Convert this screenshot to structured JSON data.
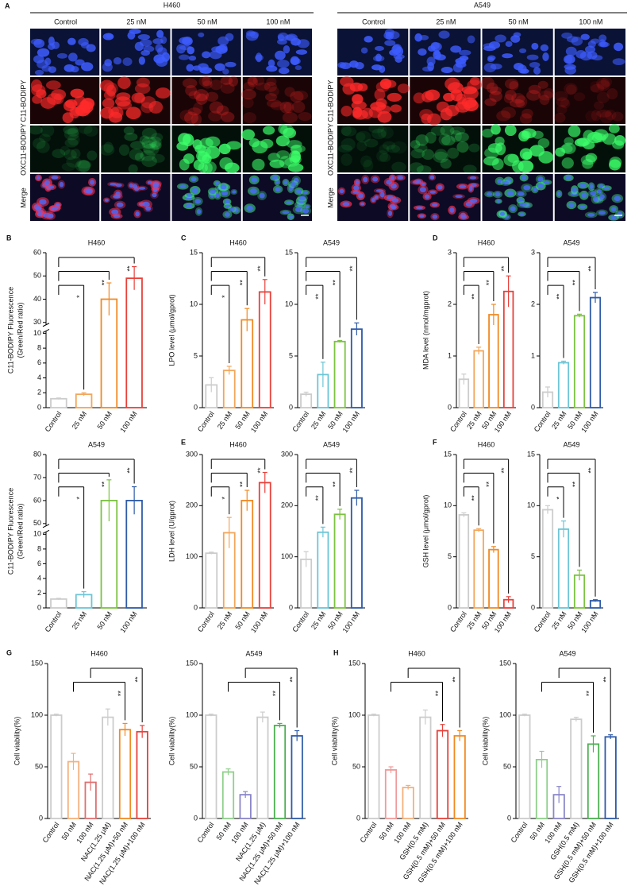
{
  "panel_a": {
    "label": "A",
    "row_label_colors": [
      "#e02020",
      "#1f9a3c",
      "#000000"
    ],
    "groups": [
      {
        "title": "H460",
        "columns": [
          "Control",
          "25 nM",
          "50 nM",
          "100 nM"
        ],
        "row_labels": [
          "C11-BODIPY",
          "OXC11-BODIPY",
          "Merge"
        ]
      },
      {
        "title": "A549",
        "columns": [
          "Control",
          "25 nM",
          "50 nM",
          "100 nM"
        ],
        "row_labels": [
          "C11-BODIPY",
          "OXC11-BODIPY",
          "Merge"
        ]
      }
    ]
  },
  "chart_data": [
    {
      "type": "bar",
      "panel": "B",
      "title": "H460",
      "ylabel": [
        "C11-BODIPY Fluorescence",
        "(Green/Red ratio)"
      ],
      "categories": [
        "Control",
        "25 nM",
        "50 nM",
        "100 nM"
      ],
      "values": [
        1.2,
        1.8,
        40,
        49
      ],
      "errors": [
        0.1,
        0.2,
        7,
        5
      ],
      "significance": [
        null,
        "*",
        "**",
        "**"
      ],
      "colors": [
        "#cccccc",
        "#f2a65a",
        "#f08a24",
        "#e8403a"
      ],
      "ylim": [
        0,
        60
      ],
      "axis_break": [
        10,
        30
      ],
      "yticks": [
        0,
        2,
        4,
        6,
        8,
        10,
        30,
        40,
        50,
        60
      ]
    },
    {
      "type": "bar",
      "title": "A549",
      "ylabel": [
        "C11-BODIPY Fluorescence",
        "(Green/Red ratio)"
      ],
      "categories": [
        "Control",
        "25 nM",
        "50 nM",
        "100 nM"
      ],
      "values": [
        1.2,
        1.8,
        60,
        60
      ],
      "errors": [
        0.1,
        0.4,
        9,
        6
      ],
      "significance": [
        null,
        "*",
        "**",
        "**"
      ],
      "colors": [
        "#cccccc",
        "#6cc5d6",
        "#7cc242",
        "#2e5aa8"
      ],
      "ylim": [
        0,
        80
      ],
      "axis_break": [
        10,
        50
      ],
      "yticks": [
        0,
        2,
        4,
        6,
        8,
        10,
        50,
        60,
        70,
        80
      ]
    },
    {
      "type": "bar",
      "panel": "C",
      "title": "H460",
      "ylabel": [
        "LPO level (μmol/gprot)"
      ],
      "categories": [
        "Control",
        "25 nM",
        "50 nM",
        "100 nM"
      ],
      "values": [
        2.2,
        3.6,
        8.5,
        11.2
      ],
      "errors": [
        0.7,
        0.4,
        1.1,
        1.2
      ],
      "significance": [
        null,
        "*",
        "**",
        "**"
      ],
      "colors": [
        "#cccccc",
        "#f2a65a",
        "#f08a24",
        "#e8403a"
      ],
      "ylim": [
        0,
        15
      ],
      "yticks": [
        0,
        5,
        10,
        15
      ]
    },
    {
      "type": "bar",
      "title": "A549",
      "categories": [
        "Control",
        "25 nM",
        "50 nM",
        "100 nM"
      ],
      "values": [
        1.3,
        3.2,
        6.4,
        7.6
      ],
      "errors": [
        0.2,
        1.2,
        0.1,
        0.6
      ],
      "significance": [
        null,
        "**",
        "**",
        "**"
      ],
      "colors": [
        "#cccccc",
        "#6cc5d6",
        "#7cc242",
        "#2e5aa8"
      ],
      "ylim": [
        0,
        15
      ],
      "yticks": [
        0,
        5,
        10,
        15
      ]
    },
    {
      "type": "bar",
      "panel": "D",
      "title": "H460",
      "ylabel": [
        "MDA level (nmol/mgprot)"
      ],
      "categories": [
        "Control",
        "25 nM",
        "50 nM",
        "100 nM"
      ],
      "values": [
        0.55,
        1.1,
        1.8,
        2.25
      ],
      "errors": [
        0.1,
        0.07,
        0.2,
        0.3
      ],
      "significance": [
        null,
        "**",
        "**",
        "**"
      ],
      "colors": [
        "#cccccc",
        "#f2a65a",
        "#f08a24",
        "#e8403a"
      ],
      "ylim": [
        0,
        3
      ],
      "yticks": [
        0,
        1,
        2,
        3
      ]
    },
    {
      "type": "bar",
      "title": "A549",
      "categories": [
        "Control",
        "25 nM",
        "50 nM",
        "100 nM"
      ],
      "values": [
        0.3,
        0.87,
        1.78,
        2.13
      ],
      "errors": [
        0.1,
        0.03,
        0.03,
        0.1
      ],
      "significance": [
        null,
        "**",
        "**",
        "**"
      ],
      "colors": [
        "#cccccc",
        "#6cc5d6",
        "#7cc242",
        "#2e5aa8"
      ],
      "ylim": [
        0,
        3
      ],
      "yticks": [
        0,
        1,
        2,
        3
      ]
    },
    {
      "type": "bar",
      "panel": "E",
      "title": "H460",
      "ylabel": [
        "LDH level (U/gprot)"
      ],
      "categories": [
        "Control",
        "25 nM",
        "50 nM",
        "100 nM"
      ],
      "values": [
        107,
        147,
        210,
        245
      ],
      "errors": [
        2,
        30,
        20,
        20
      ],
      "significance": [
        null,
        "*",
        "**",
        "**"
      ],
      "colors": [
        "#cccccc",
        "#f2a65a",
        "#f08a24",
        "#e8403a"
      ],
      "ylim": [
        0,
        300
      ],
      "yticks": [
        0,
        100,
        200,
        300
      ]
    },
    {
      "type": "bar",
      "title": "A549",
      "categories": [
        "Control",
        "25 nM",
        "50 nM",
        "100 nM"
      ],
      "values": [
        95,
        148,
        183,
        215
      ],
      "errors": [
        15,
        10,
        10,
        15
      ],
      "significance": [
        null,
        "**",
        "**",
        "**"
      ],
      "colors": [
        "#cccccc",
        "#6cc5d6",
        "#7cc242",
        "#2e5aa8"
      ],
      "ylim": [
        0,
        300
      ],
      "yticks": [
        0,
        100,
        200,
        300
      ]
    },
    {
      "type": "bar",
      "panel": "F",
      "title": "H460",
      "ylabel": [
        "GSH level (μmol/gprot)"
      ],
      "categories": [
        "Control",
        "25 nM",
        "50 nM",
        "100 nM"
      ],
      "values": [
        9.1,
        7.6,
        5.7,
        0.8
      ],
      "errors": [
        0.2,
        0.15,
        0.3,
        0.3
      ],
      "significance": [
        null,
        "**",
        "**",
        "**"
      ],
      "colors": [
        "#cccccc",
        "#f2a65a",
        "#f08a24",
        "#e8403a"
      ],
      "ylim": [
        0,
        15
      ],
      "yticks": [
        0,
        5,
        10,
        15
      ]
    },
    {
      "type": "bar",
      "title": "A549",
      "categories": [
        "Control",
        "25 nM",
        "50 nM",
        "100 nM"
      ],
      "values": [
        9.6,
        7.7,
        3.2,
        0.7
      ],
      "errors": [
        0.4,
        0.8,
        0.5,
        0.1
      ],
      "significance": [
        null,
        "*",
        "**",
        "**"
      ],
      "colors": [
        "#cccccc",
        "#6cc5d6",
        "#7cc242",
        "#2e5aa8"
      ],
      "ylim": [
        0,
        15
      ],
      "yticks": [
        0,
        5,
        10,
        15
      ]
    },
    {
      "type": "bar",
      "panel": "G",
      "title": "H460",
      "ylabel": [
        "Cell viability(%)"
      ],
      "categories": [
        "Control",
        "50 nM",
        "100 nM",
        "NAC(1.25 μM)",
        "NAC(1.25 μM)+50 nM",
        "NAC(1.25 μM)+100 nM"
      ],
      "values": [
        100,
        55,
        35,
        98,
        86,
        84
      ],
      "errors": [
        1,
        8,
        8,
        8,
        6,
        6
      ],
      "significance": [
        null,
        null,
        null,
        null,
        "**",
        "**"
      ],
      "colors": [
        "#cccccc",
        "#f5b07a",
        "#e07070",
        "#cccccc",
        "#f08a24",
        "#e8403a"
      ],
      "ylim": [
        0,
        150
      ],
      "yticks": [
        0,
        50,
        100,
        150
      ]
    },
    {
      "type": "bar",
      "title": "A549",
      "ylabel": [
        "Cell viability(%)"
      ],
      "categories": [
        "Control",
        "50 nM",
        "100 nM",
        "NAC(1.25 μM)",
        "NAC(1.25 μM)+50 nM",
        "NAC(1.25 μM)+100 nM"
      ],
      "values": [
        100,
        45,
        23,
        98,
        90,
        80
      ],
      "errors": [
        1,
        3,
        3,
        5,
        2,
        5
      ],
      "significance": [
        null,
        null,
        null,
        null,
        "**",
        "**"
      ],
      "colors": [
        "#cccccc",
        "#8fd08a",
        "#8a86c8",
        "#cccccc",
        "#4caf50",
        "#2e5aa8"
      ],
      "ylim": [
        0,
        150
      ],
      "yticks": [
        0,
        50,
        100,
        150
      ]
    },
    {
      "type": "bar",
      "panel": "H",
      "title": "H460",
      "ylabel": [
        "Cell viability(%)"
      ],
      "categories": [
        "Control",
        "50 nM",
        "100 nM",
        "GSH(0.5 mM)",
        "GSH(0.5 mM)+50 nM",
        "GSH(0.5 mM)+100 nM"
      ],
      "values": [
        100,
        47,
        30,
        98,
        85,
        80
      ],
      "errors": [
        1,
        3,
        2,
        7,
        6,
        5
      ],
      "significance": [
        null,
        null,
        null,
        null,
        "**",
        "**"
      ],
      "colors": [
        "#cccccc",
        "#f09a9a",
        "#f5b07a",
        "#cccccc",
        "#e8403a",
        "#f08a24"
      ],
      "ylim": [
        0,
        150
      ],
      "yticks": [
        0,
        50,
        100,
        150
      ]
    },
    {
      "type": "bar",
      "title": "A549",
      "ylabel": [
        "Cell viability(%)"
      ],
      "categories": [
        "Control",
        "50 nM",
        "100 nM",
        "GSH(0.5 mM)",
        "GSH(0.5 mM)+50 nM",
        "GSH(0.5 mM)+100 nM"
      ],
      "values": [
        100,
        57,
        23,
        96,
        72,
        79
      ],
      "errors": [
        1,
        8,
        8,
        2,
        8,
        2
      ],
      "significance": [
        null,
        null,
        null,
        null,
        "**",
        "**"
      ],
      "colors": [
        "#cccccc",
        "#8fd08a",
        "#8a86c8",
        "#cccccc",
        "#4caf50",
        "#2e5aa8"
      ],
      "ylim": [
        0,
        150
      ],
      "yticks": [
        0,
        50,
        100,
        150
      ]
    }
  ]
}
